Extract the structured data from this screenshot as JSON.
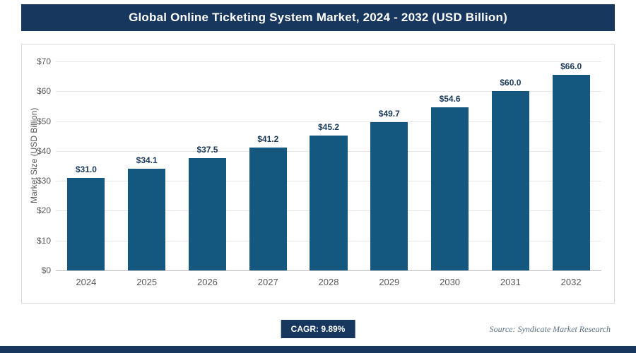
{
  "header": {
    "title": "Global Online Ticketing System Market, 2024 - 2032 (USD Billion)"
  },
  "chart_data": {
    "type": "bar",
    "title": "Global Online Ticketing System Market, 2024 - 2032 (USD Billion)",
    "categories": [
      "2024",
      "2025",
      "2026",
      "2027",
      "2028",
      "2029",
      "2030",
      "2031",
      "2032"
    ],
    "values": [
      31.0,
      34.1,
      37.5,
      41.2,
      45.2,
      49.7,
      54.6,
      60.0,
      66.0
    ],
    "value_labels": [
      "$31.0",
      "$34.1",
      "$37.5",
      "$41.2",
      "$45.2",
      "$49.7",
      "$54.6",
      "$60.0",
      "$66.0"
    ],
    "xlabel": "",
    "ylabel": "Market Size (USD Billion)",
    "ylim": [
      0,
      70
    ],
    "ytick_step": 10,
    "ytick_labels": [
      "$0",
      "$10",
      "$20",
      "$30",
      "$40",
      "$50",
      "$60",
      "$70"
    ],
    "grid": true,
    "legend_position": "none",
    "bar_color": "#14587f"
  },
  "footer": {
    "cagr_label": "CAGR: 9.89%",
    "source_text": "Source: Syndicate Market Research"
  }
}
